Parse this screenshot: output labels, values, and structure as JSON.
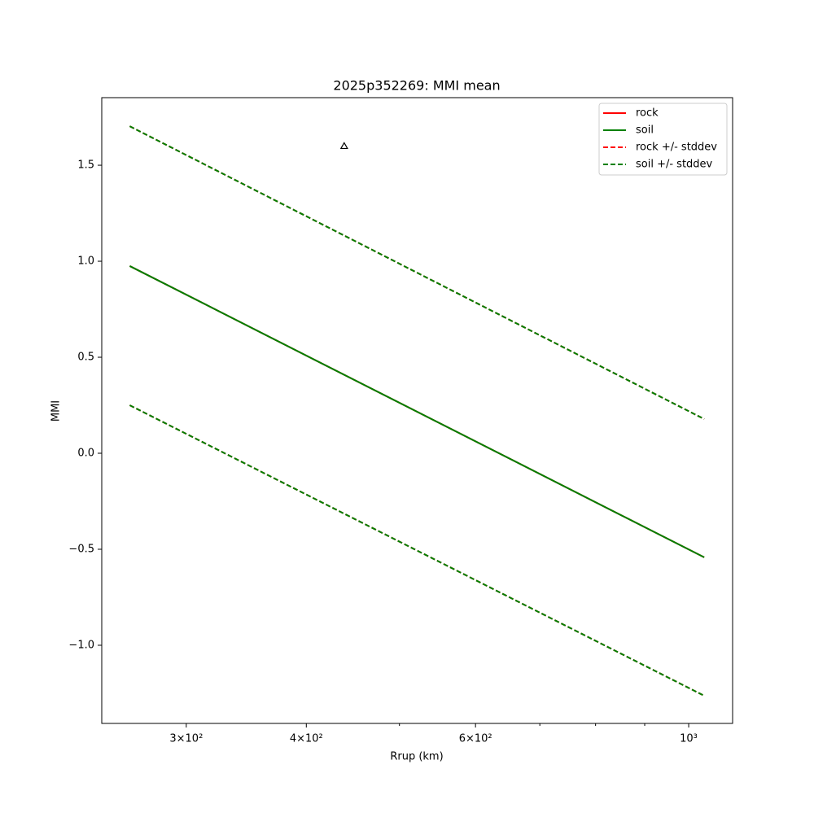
{
  "chart_data": {
    "type": "line",
    "title": "2025p352269: MMI mean",
    "xlabel": "Rrup (km)",
    "ylabel": "MMI",
    "xscale": "log",
    "xlim": [
      245,
      1111
    ],
    "ylim": [
      -1.407,
      1.852
    ],
    "xticks": [
      {
        "value": 300,
        "label": "3×10²"
      },
      {
        "value": 400,
        "label": "4×10²"
      },
      {
        "value": 600,
        "label": "6×10²"
      },
      {
        "value": 1000,
        "label": "10³"
      }
    ],
    "xminorticks": [
      500,
      700,
      800,
      900
    ],
    "yticks": [
      {
        "value": -1.0,
        "label": "−1.0"
      },
      {
        "value": -0.5,
        "label": "−0.5"
      },
      {
        "value": 0.0,
        "label": "0.0"
      },
      0.5,
      {
        "value": 1.0,
        "label": "1.0"
      },
      1.5
    ],
    "x": [
      262,
      1038
    ],
    "series": [
      {
        "name": "rock",
        "color": "#ff0000",
        "dashed": false,
        "values": [
          0.975,
          -0.542
        ]
      },
      {
        "name": "soil",
        "color": "#008000",
        "dashed": false,
        "values": [
          0.975,
          -0.542
        ]
      },
      {
        "name": "rock +/- stddev",
        "color": "#ff0000",
        "dashed": true,
        "upper": [
          1.703,
          0.178
        ],
        "lower": [
          0.25,
          -1.263
        ]
      },
      {
        "name": "soil +/- stddev",
        "color": "#008000",
        "dashed": true,
        "upper": [
          1.703,
          0.178
        ],
        "lower": [
          0.25,
          -1.263
        ]
      }
    ],
    "points": {
      "x": [
        438
      ],
      "values": [
        1.6
      ]
    },
    "legend": "upper right"
  }
}
